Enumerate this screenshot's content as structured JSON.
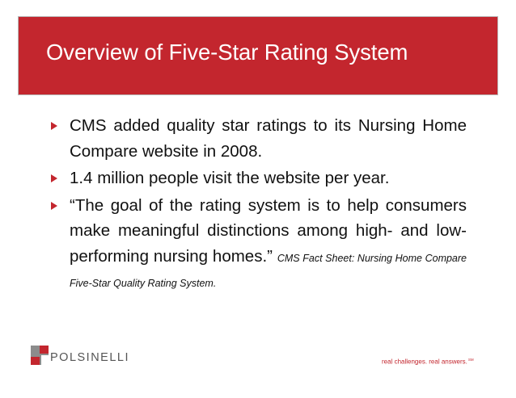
{
  "slide": {
    "title": "Overview of Five-Star Rating System",
    "bullets": [
      {
        "text": "CMS added quality star ratings to its Nursing Home Compare website in 2008."
      },
      {
        "text": "1.4 million people visit the website per year."
      },
      {
        "text": "“The goal of the rating system is to help consumers make meaningful distinctions among high- and low-performing nursing homes.”",
        "citation": "CMS Fact Sheet: Nursing Home Compare Five-Star Quality Rating System."
      }
    ]
  },
  "footer": {
    "logo_text": "POLSINELLI",
    "tagline": "real challenges.  real answers.",
    "service_mark": "SM"
  },
  "colors": {
    "brand_red": "#c3262e",
    "logo_gray": "#8c8c8c"
  },
  "icons": {
    "bullet": "triangle-right-icon",
    "logo": "polsinelli-logo-mark"
  }
}
